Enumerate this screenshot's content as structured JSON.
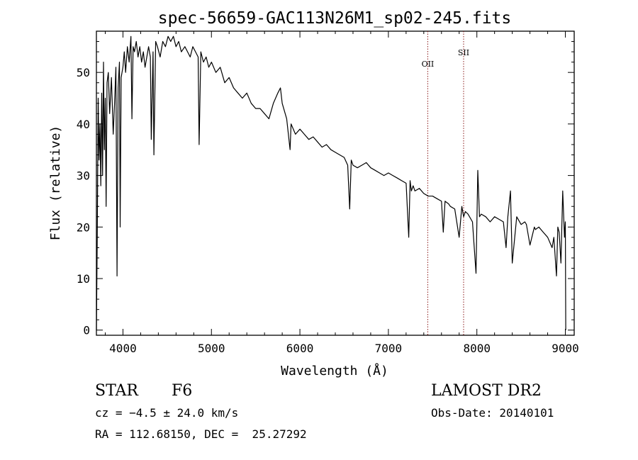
{
  "chart_data": {
    "type": "line",
    "title": "spec-56659-GAC113N26M1_sp02-245.fits",
    "xlabel": "Wavelength (Å)",
    "ylabel": "Flux (relative)",
    "xlim": [
      3700,
      9100
    ],
    "ylim": [
      -1,
      58
    ],
    "xticks": [
      4000,
      5000,
      6000,
      7000,
      8000,
      9000
    ],
    "yticks": [
      0,
      10,
      20,
      30,
      40,
      50
    ],
    "grid": false,
    "line_color": "#000000",
    "marker_color": "#8b1a1a",
    "emission_lines": [
      {
        "label": "OII",
        "x": 7445
      },
      {
        "label": "SII",
        "x": 7850
      }
    ],
    "series": [
      {
        "x": [
          3700,
          3710,
          3720,
          3730,
          3740,
          3750,
          3760,
          3770,
          3780,
          3790,
          3800,
          3810,
          3820,
          3835,
          3850,
          3870,
          3890,
          3905,
          3920,
          3933,
          3945,
          3960,
          3968,
          3980,
          4000,
          4015,
          4030,
          4050,
          4070,
          4090,
          4101,
          4115,
          4130,
          4150,
          4170,
          4190,
          4210,
          4230,
          4250,
          4270,
          4290,
          4310,
          4320,
          4340,
          4350,
          4370,
          4390,
          4420,
          4450,
          4480,
          4510,
          4540,
          4570,
          4600,
          4630,
          4660,
          4700,
          4730,
          4760,
          4790,
          4820,
          4850,
          4861,
          4880,
          4910,
          4940,
          4970,
          5000,
          5050,
          5100,
          5150,
          5200,
          5250,
          5300,
          5350,
          5400,
          5450,
          5500,
          5550,
          5600,
          5650,
          5700,
          5750,
          5780,
          5800,
          5850,
          5870,
          5889,
          5900,
          5950,
          6000,
          6050,
          6100,
          6150,
          6200,
          6250,
          6300,
          6350,
          6400,
          6450,
          6500,
          6540,
          6563,
          6580,
          6600,
          6650,
          6700,
          6750,
          6800,
          6850,
          6900,
          6950,
          7000,
          7050,
          7100,
          7150,
          7200,
          7230,
          7245,
          7260,
          7280,
          7300,
          7350,
          7400,
          7450,
          7500,
          7550,
          7600,
          7620,
          7640,
          7680,
          7700,
          7750,
          7800,
          7830,
          7850,
          7870,
          7900,
          7950,
          7990,
          8010,
          8030,
          8050,
          8100,
          8150,
          8200,
          8250,
          8300,
          8330,
          8350,
          8380,
          8400,
          8450,
          8500,
          8542,
          8560,
          8600,
          8650,
          8662,
          8700,
          8750,
          8800,
          8850,
          8870,
          8900,
          8915,
          8930,
          8950,
          8970,
          8990,
          9000,
          9005
        ],
        "y": [
          0,
          18,
          45,
          33,
          40,
          28,
          46,
          30,
          52,
          35,
          45,
          24,
          48,
          50,
          42,
          49,
          38,
          44,
          51,
          10.5,
          47,
          52,
          20,
          49,
          51,
          54,
          50,
          55,
          52,
          57,
          41,
          55,
          54,
          56,
          53,
          55,
          52,
          54,
          51,
          53,
          55,
          53,
          37,
          54,
          34,
          56,
          55,
          53,
          56,
          55,
          57,
          56,
          57,
          55,
          56,
          54,
          55,
          54,
          53,
          55,
          54,
          53,
          36,
          54,
          52,
          53,
          51,
          52,
          50,
          51,
          48,
          49,
          47,
          46,
          45,
          46,
          44,
          43,
          43,
          42,
          41,
          44,
          46,
          47,
          44,
          41,
          38,
          35,
          40,
          38,
          39,
          38,
          37,
          37.5,
          36.5,
          35.5,
          36,
          35,
          34.5,
          34,
          33.5,
          32,
          23.5,
          33,
          32,
          31.5,
          32,
          32.5,
          31.5,
          31,
          30.5,
          30,
          30.5,
          30,
          29.5,
          29,
          28.5,
          18,
          29,
          27,
          28,
          27,
          27.5,
          26.5,
          26,
          26,
          25.5,
          25,
          19,
          25,
          24.5,
          24,
          23.5,
          18,
          24,
          22,
          23,
          22.5,
          21,
          11,
          31,
          22,
          22.5,
          22,
          21,
          22,
          21.5,
          21,
          16,
          22,
          27,
          13,
          22,
          20.5,
          21,
          20.5,
          16.5,
          20,
          19.5,
          20,
          19,
          18,
          16,
          18,
          10.5,
          20,
          19,
          13,
          27,
          18,
          21,
          0
        ]
      }
    ]
  },
  "info": {
    "object_class": "STAR",
    "subclass": "F6",
    "survey": "LAMOST DR2",
    "velocity": "cz = −4.5 ± 24.0 km/s",
    "obs_date": "Obs-Date: 20140101",
    "coords": "RA = 112.68150, DEC =  25.27292"
  }
}
